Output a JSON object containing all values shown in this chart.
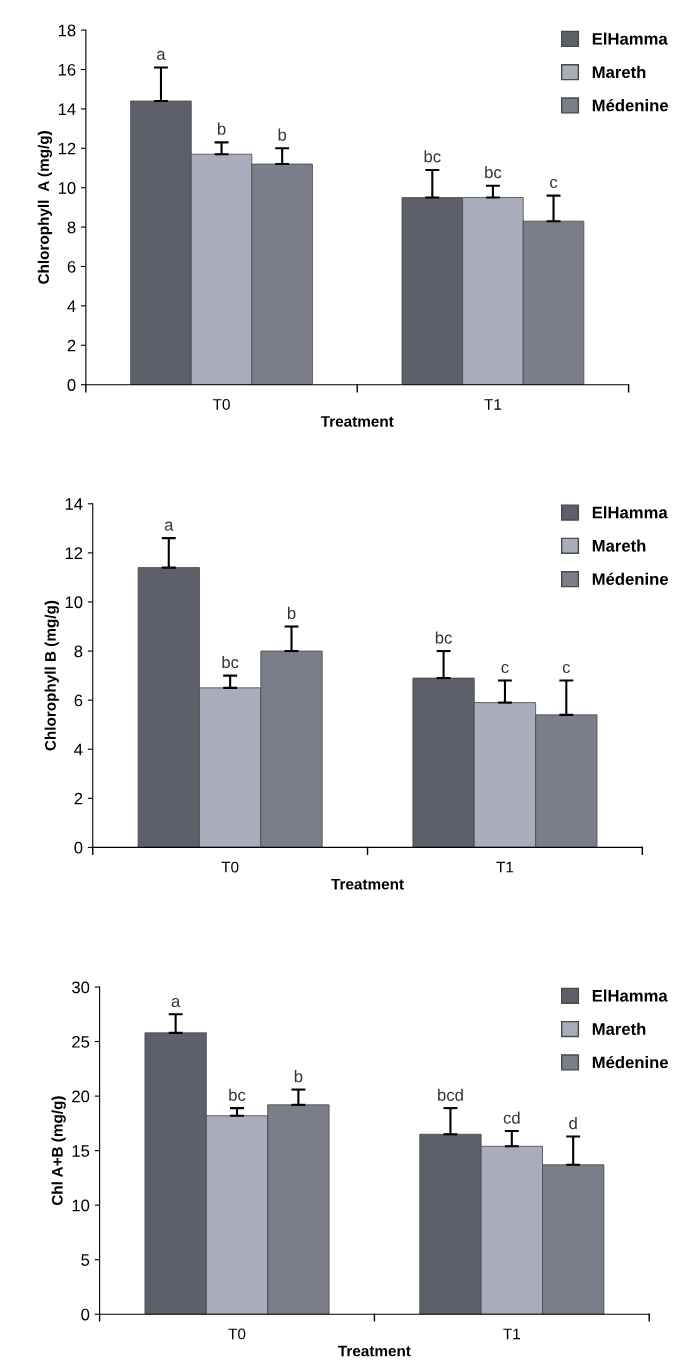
{
  "chart_data": [
    {
      "type": "bar",
      "ylabel": "Chlorophyll  A (mg/g)",
      "xlabel": "Treatment",
      "categories": [
        "T0",
        "T1"
      ],
      "ylim": [
        0,
        18
      ],
      "yticks": [
        0,
        2,
        4,
        6,
        8,
        10,
        12,
        14,
        16,
        18
      ],
      "grid": false,
      "legend": "top right",
      "series": [
        {
          "name": "ElHamma",
          "color": "#5d6069",
          "values": [
            14.4,
            9.5
          ],
          "errors": [
            [
              14.4,
              16.1
            ],
            [
              9.5,
              10.9
            ]
          ],
          "value_labels": [
            "a",
            "bc"
          ]
        },
        {
          "name": "Mareth",
          "color": "#a9acba",
          "values": [
            11.7,
            9.5
          ],
          "errors": [
            [
              11.7,
              12.3
            ],
            [
              9.5,
              10.1
            ]
          ],
          "value_labels": [
            "b",
            "bc"
          ]
        },
        {
          "name": "Médenine",
          "color": "#7b7d88",
          "values": [
            11.2,
            8.3
          ],
          "errors": [
            [
              11.2,
              12.0
            ],
            [
              8.3,
              9.6
            ]
          ],
          "value_labels": [
            "b",
            "c"
          ]
        }
      ]
    },
    {
      "type": "bar",
      "ylabel": "Chlorophyll B (mg/g)",
      "xlabel": "Treatment",
      "categories": [
        "T0",
        "T1"
      ],
      "ylim": [
        0,
        14
      ],
      "yticks": [
        0,
        2,
        4,
        6,
        8,
        10,
        12,
        14
      ],
      "grid": false,
      "legend": "top right",
      "series": [
        {
          "name": "ElHamma",
          "color": "#5d6069",
          "values": [
            11.4,
            6.9
          ],
          "errors": [
            [
              11.4,
              12.6
            ],
            [
              6.9,
              8.0
            ]
          ],
          "value_labels": [
            "a",
            "bc"
          ]
        },
        {
          "name": "Mareth",
          "color": "#a9acba",
          "values": [
            6.5,
            5.9
          ],
          "errors": [
            [
              6.5,
              7.0
            ],
            [
              5.9,
              6.8
            ]
          ],
          "value_labels": [
            "bc",
            "c"
          ]
        },
        {
          "name": "Médenine",
          "color": "#7b7d88",
          "values": [
            8.0,
            5.4
          ],
          "errors": [
            [
              8.0,
              9.0
            ],
            [
              5.4,
              6.8
            ]
          ],
          "value_labels": [
            "b",
            "c"
          ]
        }
      ]
    },
    {
      "type": "bar",
      "ylabel": "Chl A+B (mg/g)",
      "xlabel": "Treatment",
      "categories": [
        "T0",
        "T1"
      ],
      "ylim": [
        0,
        30
      ],
      "yticks": [
        0,
        5,
        10,
        15,
        20,
        25,
        30
      ],
      "grid": false,
      "legend": "top right",
      "series": [
        {
          "name": "ElHamma",
          "color": "#5d6069",
          "values": [
            25.8,
            16.5
          ],
          "errors": [
            [
              25.8,
              27.5
            ],
            [
              16.5,
              18.9
            ]
          ],
          "value_labels": [
            "a",
            "bcd"
          ]
        },
        {
          "name": "Mareth",
          "color": "#a9acba",
          "values": [
            18.2,
            15.4
          ],
          "errors": [
            [
              18.2,
              18.9
            ],
            [
              15.4,
              16.8
            ]
          ],
          "value_labels": [
            "bc",
            "cd"
          ]
        },
        {
          "name": "Médenine",
          "color": "#7b7d88",
          "values": [
            19.2,
            13.7
          ],
          "errors": [
            [
              19.2,
              20.6
            ],
            [
              13.7,
              16.3
            ]
          ],
          "value_labels": [
            "b",
            "d"
          ]
        }
      ]
    }
  ]
}
